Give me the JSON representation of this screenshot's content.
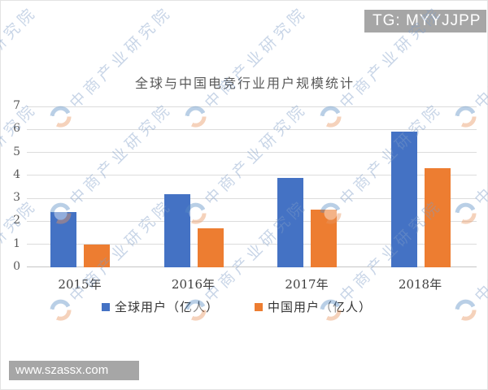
{
  "header": {
    "badge": "TG: MYYJJPP",
    "badge_bg": "#a6a6a6"
  },
  "footer": {
    "website": "www.szassx.com",
    "bar_bg": "#a6a6a6"
  },
  "watermark": {
    "text": "中商产业研究院",
    "color": "#7d9cc7"
  },
  "chart_data": {
    "type": "bar",
    "title": "全球与中国电竞行业用户规模统计",
    "categories": [
      "2015年",
      "2016年",
      "2017年",
      "2018年"
    ],
    "series": [
      {
        "name": "全球用户（亿人）",
        "color": "#4472c4",
        "values": [
          2.4,
          3.2,
          3.9,
          5.9
        ]
      },
      {
        "name": "中国用户（亿人）",
        "color": "#ed7d31",
        "values": [
          1.0,
          1.7,
          2.5,
          4.3
        ]
      }
    ],
    "xlabel": "",
    "ylabel": "",
    "ylim": [
      0,
      7
    ],
    "yticks": [
      0,
      1,
      2,
      3,
      4,
      5,
      6,
      7
    ],
    "grid": true,
    "legend_position": "bottom"
  }
}
